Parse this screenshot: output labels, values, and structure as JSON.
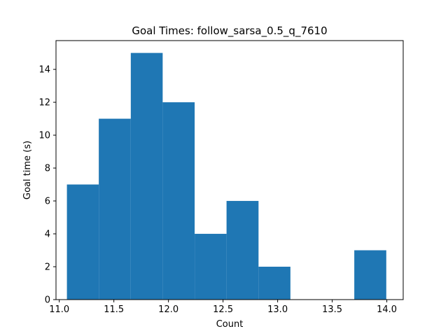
{
  "chart_data": {
    "type": "bar",
    "title": "Goal Times: follow_sarsa_0.5_q_7610",
    "xlabel": "Count",
    "ylabel": "Goal time (s)",
    "xlim": [
      10.97,
      14.15
    ],
    "ylim": [
      0,
      15.75
    ],
    "grid": false,
    "bin_edges": [
      11.07,
      11.362,
      11.655,
      11.947,
      12.24,
      12.532,
      12.825,
      13.117,
      13.41,
      13.702,
      13.995
    ],
    "values": [
      7,
      11,
      15,
      12,
      4,
      6,
      2,
      0,
      0,
      3
    ],
    "xticks": [
      11.0,
      11.5,
      12.0,
      12.5,
      13.0,
      13.5,
      14.0
    ],
    "xtick_labels": [
      "11.0",
      "11.5",
      "12.0",
      "12.5",
      "13.0",
      "13.5",
      "14.0"
    ],
    "yticks": [
      0,
      2,
      4,
      6,
      8,
      10,
      12,
      14
    ],
    "ytick_labels": [
      "0",
      "2",
      "4",
      "6",
      "8",
      "10",
      "12",
      "14"
    ],
    "bar_color": "#1f77b4"
  }
}
